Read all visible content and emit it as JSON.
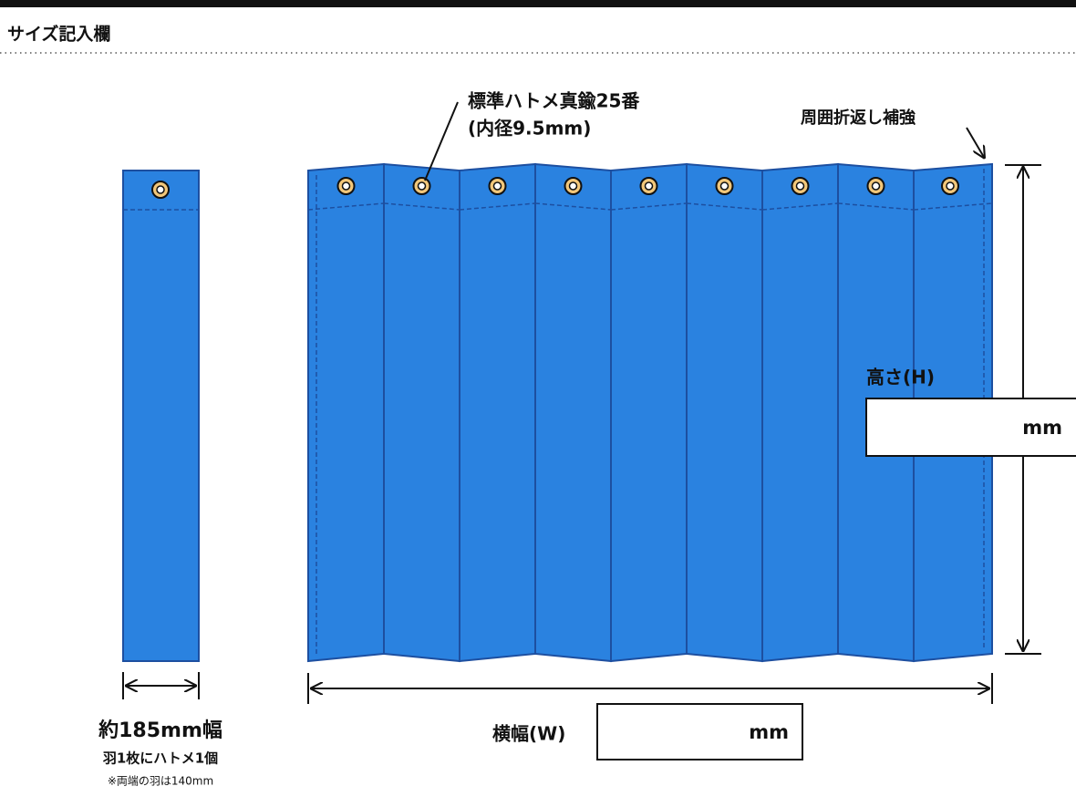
{
  "header": {
    "title": "サイズ記入欄"
  },
  "annotations": {
    "grommet": [
      "標準ハトメ真鍮25番",
      "(内径9.5mm)"
    ],
    "hem": "周囲折返し補強"
  },
  "height": {
    "label": "高さ(H)",
    "unit": "mm"
  },
  "width": {
    "label": "横幅(W)",
    "unit": "mm"
  },
  "panel": {
    "width": "約185mm幅",
    "grommets": "羽1枚にハトメ1個",
    "note": "※両端の羽は140mm"
  }
}
